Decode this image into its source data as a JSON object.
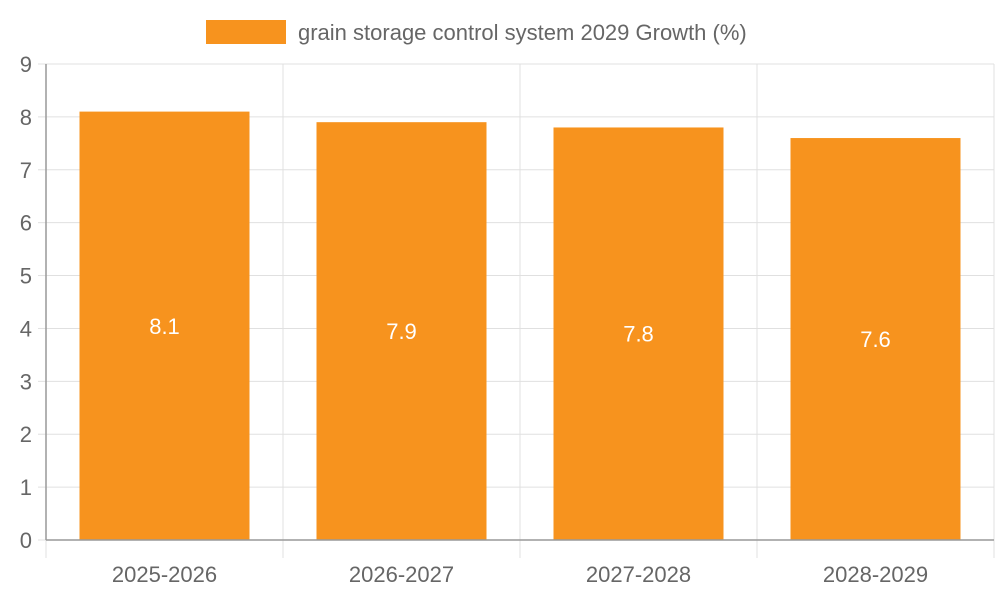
{
  "colors": {
    "bar": "#f7931e",
    "grid": "#e0e0e0",
    "axis": "#999999",
    "tick_text": "#666666",
    "data_label": "#ffffff"
  },
  "chart_data": {
    "type": "bar",
    "title": "",
    "xlabel": "",
    "ylabel": "",
    "categories": [
      "2025-2026",
      "2026-2027",
      "2027-2028",
      "2028-2029"
    ],
    "series": [
      {
        "name": "grain storage control system 2029 Growth (%)",
        "values": [
          8.1,
          7.9,
          7.8,
          7.6
        ]
      }
    ],
    "data_labels": [
      "8.1",
      "7.9",
      "7.8",
      "7.6"
    ],
    "y_ticks": [
      "0",
      "1",
      "2",
      "3",
      "4",
      "5",
      "6",
      "7",
      "8",
      "9"
    ],
    "ylim": [
      0,
      9
    ],
    "grid": true,
    "legend_position": "top-center"
  }
}
